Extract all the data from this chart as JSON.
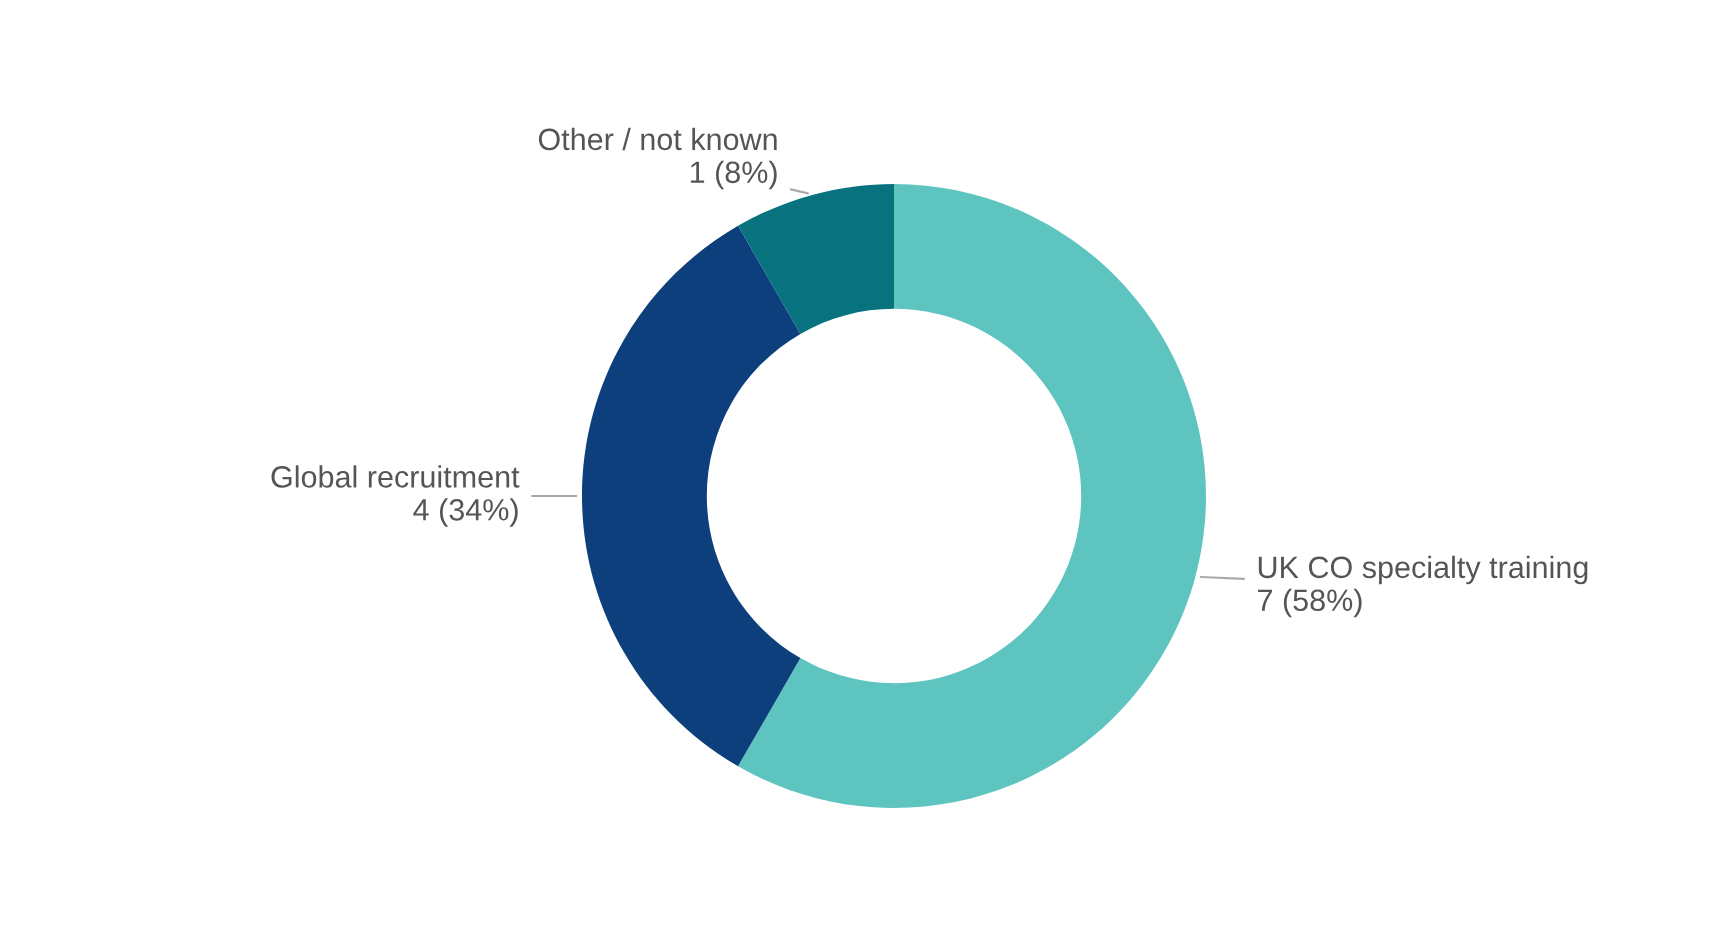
{
  "chart_data": {
    "type": "donut",
    "categories": [
      "UK CO specialty training",
      "Global recruitment",
      "Other / not known"
    ],
    "values": [
      7,
      4,
      1
    ],
    "value_labels": [
      "7 (58%)",
      "4 (34%)",
      "1 (8%)"
    ],
    "colors": [
      "#5ec4c0",
      "#0c3f7c",
      "#08727f"
    ]
  }
}
